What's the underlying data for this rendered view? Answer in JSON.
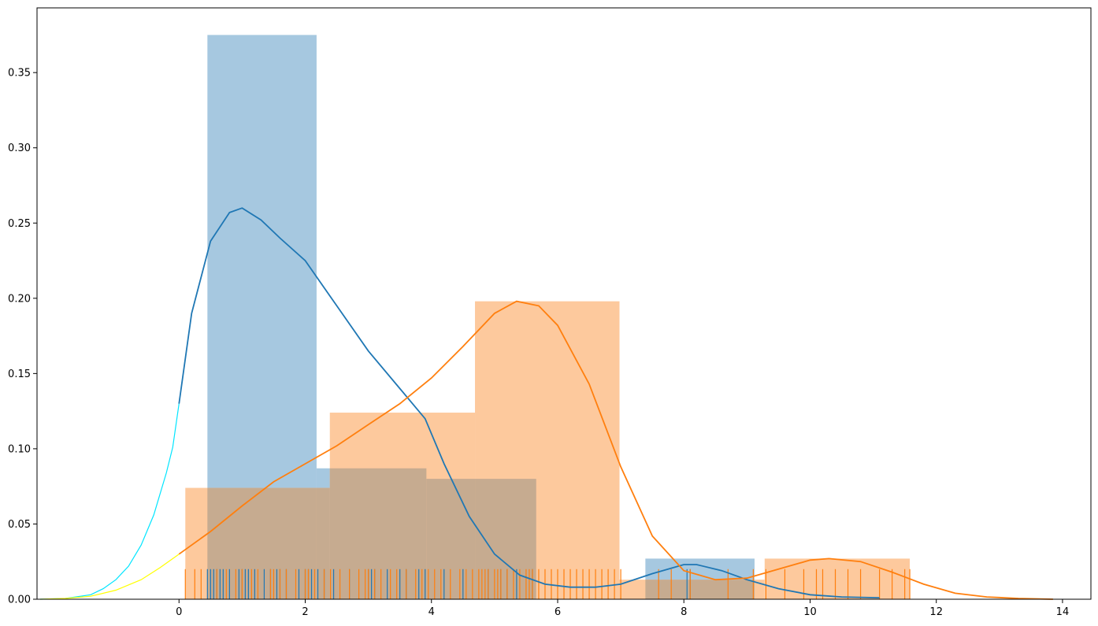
{
  "chart_data": {
    "type": "histogram+kde+rug",
    "title": "",
    "xlabel": "",
    "ylabel": "",
    "xlim": [
      -2.25,
      14.45
    ],
    "ylim": [
      0,
      0.393
    ],
    "xticks": [
      0,
      2,
      4,
      6,
      8,
      10,
      12,
      14
    ],
    "yticks": [
      0.0,
      0.05,
      0.1,
      0.15,
      0.2,
      0.25,
      0.3,
      0.35
    ],
    "xtick_labels": [
      "0",
      "2",
      "4",
      "6",
      "8",
      "10",
      "12",
      "14"
    ],
    "ytick_labels": [
      "0.00",
      "0.05",
      "0.10",
      "0.15",
      "0.20",
      "0.25",
      "0.30",
      "0.35"
    ],
    "grid": false,
    "legend": "none",
    "colors": {
      "series1": "#1f77b4",
      "series2": "#ff7f0e",
      "series1_hist": "#a6c8e0",
      "series2_hist": "#fdc99d",
      "overlap": "#c6ab90",
      "extension_cyan": "#00e5ff",
      "extension_yellow": "#ffff00"
    },
    "series": [
      {
        "color": "#1f77b4",
        "histogram": [
          {
            "x0": 0.45,
            "x1": 2.18,
            "density": 0.375
          },
          {
            "x0": 2.18,
            "x1": 3.92,
            "density": 0.087
          },
          {
            "x0": 3.92,
            "x1": 5.66,
            "density": 0.08
          },
          {
            "x0": 5.66,
            "x1": 7.39,
            "density": 0.0
          },
          {
            "x0": 7.39,
            "x1": 9.12,
            "density": 0.027
          }
        ],
        "kde": [
          [
            0.0,
            0.13
          ],
          [
            0.2,
            0.19
          ],
          [
            0.5,
            0.238
          ],
          [
            0.8,
            0.257
          ],
          [
            1.0,
            0.26
          ],
          [
            1.3,
            0.252
          ],
          [
            1.6,
            0.24
          ],
          [
            2.0,
            0.225
          ],
          [
            2.5,
            0.195
          ],
          [
            3.0,
            0.165
          ],
          [
            3.5,
            0.14
          ],
          [
            3.9,
            0.12
          ],
          [
            4.2,
            0.09
          ],
          [
            4.6,
            0.055
          ],
          [
            5.0,
            0.03
          ],
          [
            5.4,
            0.016
          ],
          [
            5.8,
            0.01
          ],
          [
            6.2,
            0.008
          ],
          [
            6.6,
            0.008
          ],
          [
            7.0,
            0.01
          ],
          [
            7.5,
            0.017
          ],
          [
            8.0,
            0.023
          ],
          [
            8.2,
            0.023
          ],
          [
            8.6,
            0.019
          ],
          [
            9.0,
            0.013
          ],
          [
            9.5,
            0.007
          ],
          [
            10.0,
            0.003
          ],
          [
            10.5,
            0.0015
          ],
          [
            11.1,
            0.001
          ]
        ],
        "rug": [
          0.45,
          0.5,
          0.55,
          0.6,
          0.65,
          0.7,
          0.8,
          0.95,
          1.0,
          1.05,
          1.1,
          1.2,
          1.35,
          1.45,
          1.55,
          1.6,
          1.7,
          1.9,
          2.0,
          2.05,
          2.1,
          2.2,
          2.3,
          2.45,
          2.7,
          3.0,
          3.05,
          3.1,
          3.3,
          3.5,
          3.6,
          3.8,
          3.9,
          4.2,
          4.5,
          4.9,
          5.1,
          5.2,
          5.35,
          5.6,
          8.05,
          8.1
        ]
      },
      {
        "color": "#ff7f0e",
        "histogram": [
          {
            "x0": 0.1,
            "x1": 2.39,
            "density": 0.074
          },
          {
            "x0": 2.39,
            "x1": 4.69,
            "density": 0.124
          },
          {
            "x0": 4.69,
            "x1": 6.98,
            "density": 0.198
          },
          {
            "x0": 6.98,
            "x1": 9.28,
            "density": 0.013
          },
          {
            "x0": 9.28,
            "x1": 11.58,
            "density": 0.027
          }
        ],
        "kde": [
          [
            0.0,
            0.03
          ],
          [
            0.5,
            0.045
          ],
          [
            1.0,
            0.062
          ],
          [
            1.5,
            0.078
          ],
          [
            2.0,
            0.09
          ],
          [
            2.5,
            0.102
          ],
          [
            3.0,
            0.116
          ],
          [
            3.5,
            0.13
          ],
          [
            4.0,
            0.147
          ],
          [
            4.5,
            0.168
          ],
          [
            5.0,
            0.19
          ],
          [
            5.35,
            0.198
          ],
          [
            5.7,
            0.195
          ],
          [
            6.0,
            0.182
          ],
          [
            6.5,
            0.143
          ],
          [
            7.0,
            0.088
          ],
          [
            7.5,
            0.042
          ],
          [
            8.0,
            0.019
          ],
          [
            8.5,
            0.013
          ],
          [
            9.0,
            0.014
          ],
          [
            9.5,
            0.02
          ],
          [
            10.0,
            0.026
          ],
          [
            10.3,
            0.027
          ],
          [
            10.8,
            0.025
          ],
          [
            11.3,
            0.018
          ],
          [
            11.8,
            0.01
          ],
          [
            12.3,
            0.004
          ],
          [
            12.8,
            0.0015
          ],
          [
            13.3,
            0.0005
          ],
          [
            13.85,
            0.0
          ]
        ],
        "rug": [
          0.1,
          0.25,
          0.35,
          0.6,
          0.75,
          0.9,
          1.0,
          1.15,
          1.25,
          1.45,
          1.5,
          1.6,
          1.7,
          1.85,
          2.0,
          2.05,
          2.15,
          2.3,
          2.4,
          2.55,
          2.7,
          2.85,
          2.95,
          3.0,
          3.1,
          3.2,
          3.35,
          3.45,
          3.6,
          3.75,
          3.85,
          3.95,
          4.05,
          4.15,
          4.3,
          4.45,
          4.55,
          4.65,
          4.75,
          4.8,
          4.85,
          4.9,
          5.0,
          5.05,
          5.1,
          5.2,
          5.3,
          5.4,
          5.5,
          5.55,
          5.6,
          5.7,
          5.8,
          5.9,
          6.0,
          6.1,
          6.2,
          6.3,
          6.4,
          6.5,
          6.6,
          6.7,
          6.8,
          6.9,
          7.0,
          7.6,
          7.8,
          8.1,
          8.7,
          9.1,
          9.3,
          9.6,
          9.9,
          10.1,
          10.2,
          10.4,
          10.6,
          10.8,
          11.1,
          11.3,
          11.5,
          11.58
        ]
      }
    ],
    "extensions": [
      {
        "color": "#00e5ff",
        "points": [
          [
            -2.2,
            0.0
          ],
          [
            -1.8,
            0.0005
          ],
          [
            -1.4,
            0.003
          ],
          [
            -1.2,
            0.007
          ],
          [
            -1.0,
            0.013
          ],
          [
            -0.8,
            0.022
          ],
          [
            -0.6,
            0.036
          ],
          [
            -0.4,
            0.056
          ],
          [
            -0.2,
            0.084
          ],
          [
            -0.1,
            0.101
          ],
          [
            0.0,
            0.13
          ]
        ]
      },
      {
        "color": "#ffff00",
        "points": [
          [
            -2.2,
            0.0
          ],
          [
            -1.8,
            0.0005
          ],
          [
            -1.4,
            0.002
          ],
          [
            -1.0,
            0.006
          ],
          [
            -0.6,
            0.013
          ],
          [
            -0.3,
            0.021
          ],
          [
            0.0,
            0.03
          ]
        ]
      }
    ]
  }
}
